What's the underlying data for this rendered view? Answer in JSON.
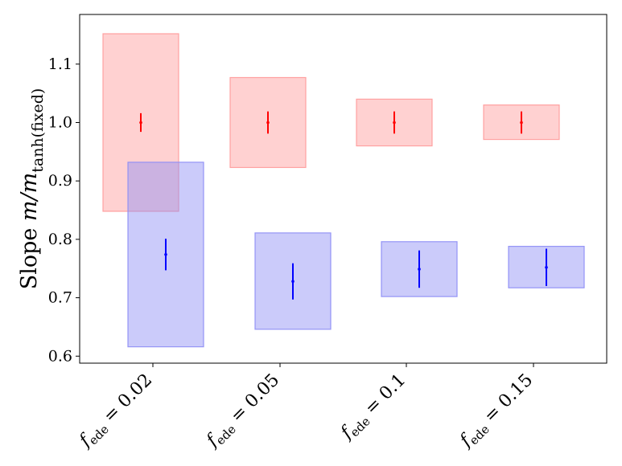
{
  "chart_data": {
    "type": "box",
    "ylabel_main": "Slope ",
    "ylabel_math": "m/m",
    "ylabel_sub": "tanh(fixed)",
    "ylim": [
      0.588,
      1.185
    ],
    "yticks": [
      0.6,
      0.7,
      0.8,
      0.9,
      1.0,
      1.1
    ],
    "ytick_labels": [
      "0.6",
      "0.7",
      "0.8",
      "0.9",
      "1.0",
      "1.1"
    ],
    "grid": false,
    "categories": [
      {
        "var": "f",
        "sub": "ede",
        "rest": " = 0.02"
      },
      {
        "var": "f",
        "sub": "ede",
        "rest": " = 0.05"
      },
      {
        "var": "f",
        "sub": "ede",
        "rest": " = 0.1"
      },
      {
        "var": "f",
        "sub": "ede",
        "rest": " = 0.15"
      }
    ],
    "series": [
      {
        "color": "#ff0000",
        "fill": "#ff9999",
        "values": [
          1.0,
          1.0,
          1.0,
          1.0
        ],
        "err_low": [
          0.984,
          0.981,
          0.981,
          0.981
        ],
        "err_high": [
          1.016,
          1.019,
          1.019,
          1.019
        ],
        "box_low": [
          0.848,
          0.923,
          0.96,
          0.971
        ],
        "box_high": [
          1.152,
          1.077,
          1.04,
          1.03
        ]
      },
      {
        "color": "#0000ff",
        "fill": "#8c8cf5",
        "values": [
          0.774,
          0.728,
          0.749,
          0.752
        ],
        "err_low": [
          0.747,
          0.697,
          0.717,
          0.72
        ],
        "err_high": [
          0.801,
          0.759,
          0.781,
          0.784
        ],
        "box_low": [
          0.616,
          0.646,
          0.702,
          0.717
        ],
        "box_high": [
          0.932,
          0.811,
          0.796,
          0.788
        ]
      }
    ]
  }
}
